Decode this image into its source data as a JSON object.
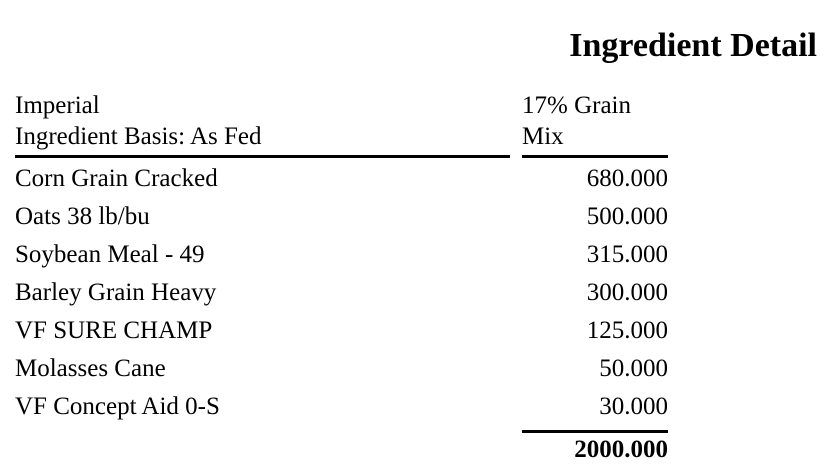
{
  "report": {
    "title": "Ingredient Detail"
  },
  "header": {
    "line1": "Imperial",
    "line2": "Ingredient Basis: As Fed",
    "mix_line1": "17% Grain",
    "mix_line2": "Mix"
  },
  "rows": [
    {
      "name": "Corn Grain Cracked",
      "amount": "680.000"
    },
    {
      "name": "Oats 38 lb/bu",
      "amount": "500.000"
    },
    {
      "name": "Soybean Meal - 49",
      "amount": "315.000"
    },
    {
      "name": "Barley Grain Heavy",
      "amount": "300.000"
    },
    {
      "name": "VF SURE CHAMP",
      "amount": "125.000"
    },
    {
      "name": "Molasses Cane",
      "amount": "50.000"
    },
    {
      "name": "VF Concept Aid 0-S",
      "amount": "30.000"
    }
  ],
  "total": "2000.000"
}
